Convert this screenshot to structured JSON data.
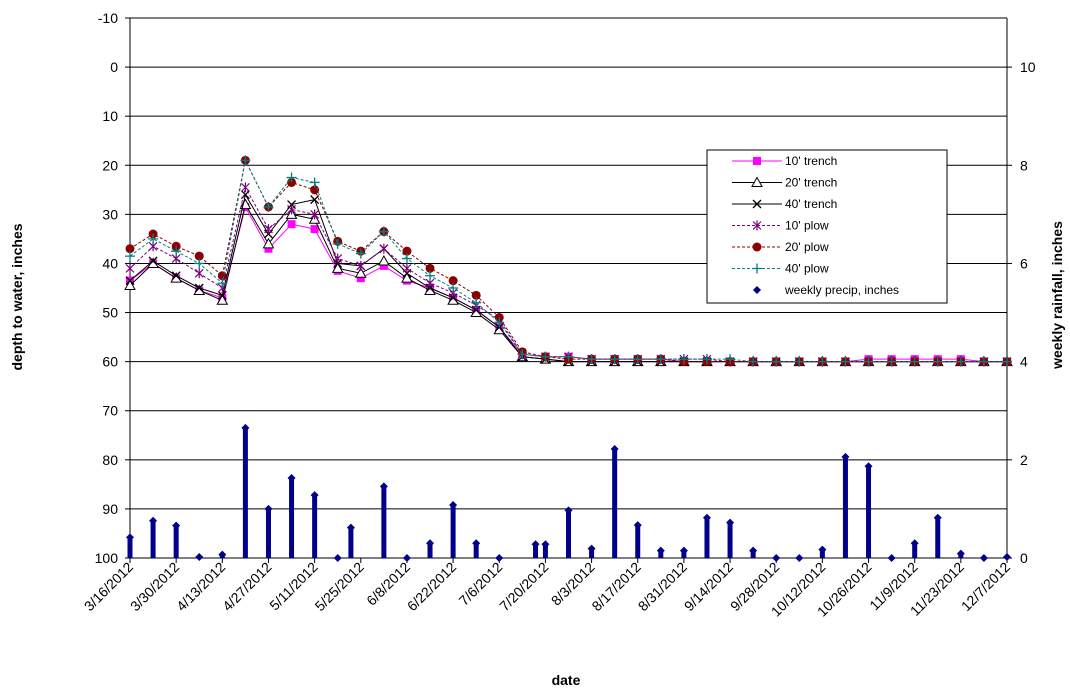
{
  "chart_data": {
    "type": "line",
    "title": "",
    "xlabel": "date",
    "ylabel": "depth to water, inches",
    "y2label": "weekly rainfall, inches",
    "ylim": [
      -10,
      100
    ],
    "y_inverted": true,
    "y_ticks": [
      "-10",
      "0",
      "10",
      "20",
      "30",
      "40",
      "50",
      "60",
      "70",
      "80",
      "90",
      "100"
    ],
    "y2lim": [
      0,
      11
    ],
    "y2_ticks": [
      "0",
      "2",
      "4",
      "6",
      "8",
      "10"
    ],
    "x_tick_labels": [
      "3/16/2012",
      "3/30/2012",
      "4/13/2012",
      "4/27/2012",
      "5/11/2012",
      "5/25/2012",
      "6/8/2012",
      "6/22/2012",
      "7/6/2012",
      "7/20/2012",
      "8/3/2012",
      "8/17/2012",
      "8/31/2012",
      "9/14/2012",
      "9/28/2012",
      "10/12/2012",
      "10/26/2012",
      "11/9/2012",
      "11/23/2012",
      "12/7/2012"
    ],
    "dates": [
      "3/16/2012",
      "3/23/2012",
      "3/30/2012",
      "4/6/2012",
      "4/13/2012",
      "4/20/2012",
      "4/27/2012",
      "5/4/2012",
      "5/11/2012",
      "5/18/2012",
      "5/25/2012",
      "6/1/2012",
      "6/8/2012",
      "6/15/2012",
      "6/22/2012",
      "6/29/2012",
      "7/6/2012",
      "7/13/2012",
      "7/20/2012",
      "7/27/2012",
      "8/3/2012",
      "8/10/2012",
      "8/17/2012",
      "8/24/2012",
      "8/31/2012",
      "9/7/2012",
      "9/14/2012",
      "9/21/2012",
      "9/28/2012",
      "10/5/2012",
      "10/12/2012",
      "10/19/2012",
      "10/26/2012",
      "11/2/2012",
      "11/9/2012",
      "11/16/2012",
      "11/23/2012",
      "11/30/2012",
      "12/7/2012"
    ],
    "grid": true,
    "legend_position": "right",
    "series": [
      {
        "name": "10' trench",
        "axis": "left",
        "color": "#ff00ff",
        "marker": "square",
        "dashed": false,
        "values": [
          43.5,
          40,
          43,
          45.5,
          47,
          28.5,
          37,
          32,
          33,
          41.5,
          43,
          40.5,
          43.5,
          45,
          47,
          49.5,
          53,
          58.5,
          59,
          59,
          59.5,
          59.5,
          59.5,
          59.5,
          60,
          60,
          60,
          60,
          60,
          60,
          60,
          60,
          59.5,
          59.5,
          59.5,
          59.5,
          59.5,
          60,
          60
        ]
      },
      {
        "name": "20' trench",
        "axis": "left",
        "color": "#000000",
        "marker": "triangle",
        "dashed": false,
        "values": [
          44.5,
          40,
          43,
          45.5,
          47.5,
          28,
          36,
          30,
          31,
          41,
          42,
          39.5,
          43,
          45.5,
          47.5,
          50,
          53.5,
          59,
          59.5,
          60,
          60,
          60,
          60,
          60,
          60,
          60,
          60,
          60,
          60,
          60,
          60,
          60,
          60,
          60,
          60,
          60,
          60,
          60,
          60
        ]
      },
      {
        "name": "40' trench",
        "axis": "left",
        "color": "#000000",
        "marker": "x",
        "dashed": false,
        "values": [
          43.5,
          39.5,
          42.5,
          45,
          46.5,
          26,
          34,
          28,
          27,
          40,
          40.5,
          37,
          42,
          45,
          47,
          49.5,
          53,
          59,
          59.5,
          60,
          60,
          60,
          60,
          60,
          60,
          60,
          60,
          60,
          60,
          60,
          60,
          60,
          60,
          60,
          60,
          60,
          60,
          60,
          60
        ]
      },
      {
        "name": "10' plow",
        "axis": "left",
        "color": "#800080",
        "marker": "star",
        "dashed": true,
        "values": [
          41,
          36.5,
          39,
          42,
          45,
          24.5,
          33,
          29,
          30,
          39,
          40.5,
          37,
          41,
          44,
          46,
          48.5,
          51.5,
          58.5,
          59,
          59,
          59.5,
          59.5,
          59.5,
          59.5,
          59.5,
          59.5,
          60,
          60,
          60,
          60,
          60,
          60,
          60,
          60,
          60,
          60,
          60,
          60,
          60
        ]
      },
      {
        "name": "20' plow",
        "axis": "left",
        "color": "#8b0000",
        "marker": "circle",
        "dashed": true,
        "values": [
          37,
          34,
          36.5,
          38.5,
          42.5,
          19,
          28.5,
          23.5,
          25,
          35.5,
          37.5,
          33.5,
          37.5,
          41,
          43.5,
          46.5,
          51,
          58,
          59,
          59.5,
          59.5,
          59.5,
          59.5,
          59.5,
          60,
          60,
          60,
          60,
          60,
          60,
          60,
          60,
          60,
          60,
          60,
          60,
          60,
          60,
          60
        ]
      },
      {
        "name": "40' plow",
        "axis": "left",
        "color": "#008080",
        "marker": "plus",
        "dashed": true,
        "values": [
          38.5,
          35,
          37.5,
          40,
          44,
          19,
          28.5,
          22.5,
          23.5,
          36,
          38,
          33.5,
          39,
          42.5,
          45,
          48,
          52,
          58.5,
          59,
          59,
          59.5,
          59.5,
          59.5,
          59.5,
          59.5,
          59.5,
          59.5,
          60,
          60,
          60,
          60,
          60,
          60,
          60,
          60,
          60,
          60,
          60,
          60
        ]
      }
    ],
    "precip": {
      "name": "weekly precip, inches",
      "axis": "right",
      "color": "#00008b",
      "marker": "diamond",
      "dates": [
        "3/16/2012",
        "3/23/2012",
        "3/30/2012",
        "4/6/2012",
        "4/13/2012",
        "4/20/2012",
        "4/27/2012",
        "5/4/2012",
        "5/11/2012",
        "5/18/2012",
        "5/22/2012",
        "6/1/2012",
        "6/8/2012",
        "6/15/2012",
        "6/22/2012",
        "6/29/2012",
        "7/6/2012",
        "7/17/2012",
        "7/20/2012",
        "7/27/2012",
        "8/3/2012",
        "8/10/2012",
        "8/17/2012",
        "8/24/2012",
        "8/31/2012",
        "9/7/2012",
        "9/14/2012",
        "9/21/2012",
        "9/28/2012",
        "10/5/2012",
        "10/12/2012",
        "10/19/2012",
        "10/26/2012",
        "11/2/2012",
        "11/9/2012",
        "11/16/2012",
        "11/23/2012",
        "11/30/2012",
        "12/7/2012"
      ],
      "values": [
        0.42,
        0.76,
        0.66,
        0.02,
        0.07,
        2.65,
        1.0,
        1.63,
        1.28,
        0.0,
        0.62,
        1.46,
        0.0,
        0.3,
        1.08,
        0.3,
        0.0,
        0.28,
        0.28,
        0.97,
        0.19,
        2.22,
        0.67,
        0.15,
        0.15,
        0.82,
        0.72,
        0.15,
        0.0,
        0.0,
        0.17,
        2.06,
        1.87,
        0.0,
        0.3,
        0.82,
        0.09,
        0.0,
        0.02
      ]
    }
  }
}
